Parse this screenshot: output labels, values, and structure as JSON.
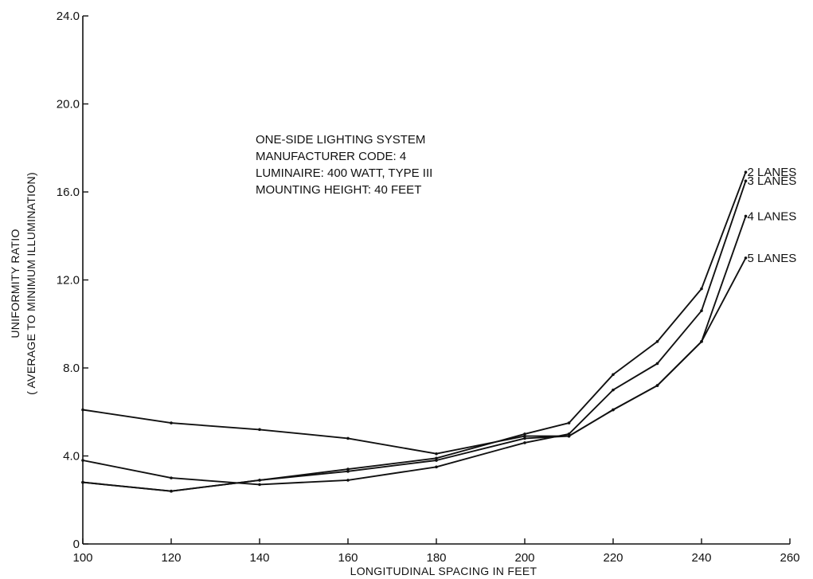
{
  "chart_data": {
    "type": "line",
    "title": "",
    "xlabel": "LONGITUDINAL SPACING IN FEET",
    "ylabel_lines": [
      "UNIFORMITY RATIO",
      "( AVERAGE TO MINIMUM ILLUMINATION)"
    ],
    "xlim": [
      100,
      260
    ],
    "ylim": [
      0,
      24
    ],
    "x_ticks": [
      100,
      120,
      140,
      160,
      180,
      200,
      220,
      240,
      260
    ],
    "x_tick_labels": [
      "100",
      "120",
      "140",
      "160",
      "180",
      "200",
      "220",
      "240",
      "260"
    ],
    "y_ticks": [
      0,
      4,
      8,
      12,
      16,
      20,
      24
    ],
    "y_tick_labels": [
      "0",
      "4.0",
      "8.0",
      "12.0",
      "16.0",
      "20.0",
      "24.0"
    ],
    "grid": false,
    "annotation_lines": [
      "ONE-SIDE LIGHTING SYSTEM",
      "MANUFACTURER CODE: 4",
      "LUMINAIRE: 400 WATT, TYPE III",
      "MOUNTING HEIGHT: 40 FEET"
    ],
    "series": [
      {
        "name": "2 LANES",
        "x": [
          100,
          120,
          140,
          160,
          180,
          200,
          210,
          220,
          230,
          240,
          250
        ],
        "y": [
          2.8,
          2.4,
          2.9,
          3.4,
          3.9,
          5.0,
          5.5,
          7.7,
          9.2,
          11.6,
          16.9
        ]
      },
      {
        "name": "3 LANES",
        "x": [
          100,
          120,
          140,
          160,
          180,
          200,
          210,
          220,
          230,
          240,
          250
        ],
        "y": [
          3.8,
          3.0,
          2.7,
          2.9,
          3.5,
          4.6,
          5.0,
          7.0,
          8.2,
          10.6,
          16.5
        ]
      },
      {
        "name": "4 LANES",
        "x": [
          100,
          120,
          140,
          160,
          180,
          200,
          210,
          220,
          230,
          240,
          250
        ],
        "y": [
          6.1,
          5.5,
          5.2,
          4.8,
          4.1,
          4.9,
          4.9,
          6.1,
          7.2,
          9.2,
          14.9
        ]
      },
      {
        "name": "5 LANES",
        "x": [
          100,
          120,
          140,
          160,
          180,
          200,
          210,
          220,
          230,
          240,
          250
        ],
        "y": [
          2.8,
          2.4,
          2.9,
          3.3,
          3.8,
          4.8,
          4.9,
          6.1,
          7.2,
          9.2,
          13.0
        ]
      }
    ]
  }
}
